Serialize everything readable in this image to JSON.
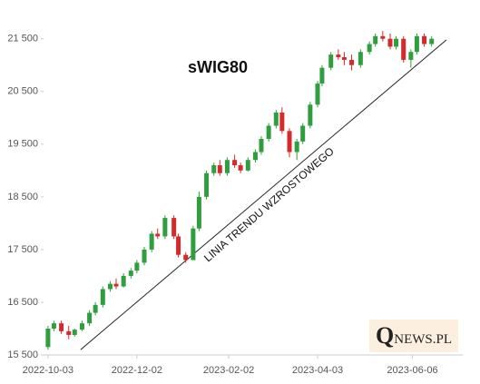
{
  "chart_data": {
    "type": "candlestick",
    "title": "sWIG80",
    "annotation": "LINIA TRENDU WZROSTOWEGO",
    "logo": "QNEWS.PL",
    "up_color": "#2e9e3f",
    "down_color": "#d62a2a",
    "x": [
      "2022-10-03",
      "2022-10-07",
      "2022-10-12",
      "2022-10-17",
      "2022-10-21",
      "2022-10-26",
      "2022-10-31",
      "2022-11-04",
      "2022-11-09",
      "2022-11-14",
      "2022-11-18",
      "2022-11-23",
      "2022-11-28",
      "2022-12-02",
      "2022-12-07",
      "2022-12-12",
      "2022-12-16",
      "2022-12-21",
      "2022-12-27",
      "2022-12-30",
      "2023-01-04",
      "2023-01-09",
      "2023-01-13",
      "2023-01-18",
      "2023-01-23",
      "2023-01-27",
      "2023-02-01",
      "2023-02-06",
      "2023-02-10",
      "2023-02-15",
      "2023-02-20",
      "2023-02-24",
      "2023-03-01",
      "2023-03-06",
      "2023-03-10",
      "2023-03-15",
      "2023-03-20",
      "2023-03-24",
      "2023-03-29",
      "2023-04-03",
      "2023-04-06",
      "2023-04-12",
      "2023-04-17",
      "2023-04-21",
      "2023-04-26",
      "2023-05-02",
      "2023-05-08",
      "2023-05-12",
      "2023-05-17",
      "2023-05-22",
      "2023-05-26",
      "2023-05-31",
      "2023-06-05",
      "2023-06-09",
      "2023-06-14",
      "2023-06-19"
    ],
    "open": [
      15650,
      16000,
      16100,
      15950,
      15880,
      15980,
      16100,
      16300,
      16450,
      16750,
      16850,
      16800,
      17000,
      17100,
      17250,
      17500,
      17800,
      17750,
      18100,
      17750,
      17400,
      17300,
      17900,
      18500,
      18950,
      19100,
      18950,
      19200,
      19100,
      19000,
      19200,
      19350,
      19600,
      19850,
      20100,
      19750,
      19350,
      19550,
      19850,
      20250,
      20650,
      20950,
      21200,
      21150,
      21100,
      21000,
      21250,
      21400,
      21550,
      21500,
      21350,
      21500,
      21100,
      21250,
      21550,
      21400
    ],
    "high": [
      16050,
      16150,
      16150,
      16050,
      16000,
      16150,
      16350,
      16500,
      16800,
      16900,
      16950,
      17050,
      17150,
      17300,
      17550,
      17850,
      17900,
      18150,
      18150,
      17800,
      17450,
      17950,
      18600,
      19000,
      19150,
      19200,
      19250,
      19300,
      19150,
      19250,
      19400,
      19650,
      19900,
      20150,
      20200,
      19800,
      19600,
      19900,
      20300,
      20700,
      21000,
      21250,
      21300,
      21250,
      21200,
      21300,
      21450,
      21600,
      21650,
      21600,
      21550,
      21550,
      21300,
      21600,
      21600,
      21550
    ],
    "low": [
      15600,
      15950,
      15900,
      15800,
      15850,
      15950,
      16050,
      16250,
      16400,
      16700,
      16750,
      16780,
      16950,
      17050,
      17200,
      17450,
      17700,
      17700,
      17700,
      17350,
      17250,
      17300,
      17850,
      18450,
      18900,
      18900,
      18900,
      19050,
      18950,
      18980,
      19150,
      19300,
      19550,
      19800,
      19700,
      19250,
      19200,
      19500,
      19800,
      20200,
      20600,
      20900,
      21100,
      21000,
      20900,
      20950,
      21200,
      21350,
      21450,
      21300,
      21300,
      21050,
      20950,
      21200,
      21350,
      21350
    ],
    "close": [
      16000,
      16100,
      15950,
      15880,
      15980,
      16100,
      16300,
      16450,
      16750,
      16850,
      16800,
      17000,
      17100,
      17250,
      17500,
      17800,
      17750,
      18100,
      17750,
      17400,
      17300,
      17900,
      18500,
      18950,
      19100,
      18950,
      19200,
      19100,
      19000,
      19200,
      19350,
      19600,
      19850,
      20100,
      19750,
      19350,
      19550,
      19850,
      20250,
      20650,
      20950,
      21200,
      21150,
      21100,
      21000,
      21250,
      21400,
      21550,
      21500,
      21350,
      21500,
      21100,
      21250,
      21550,
      21400,
      21500
    ],
    "trend_line": {
      "x": [
        "2022-10-25",
        "2023-06-29"
      ],
      "y": [
        15600,
        21480
      ]
    },
    "xlim": [
      "2022-09-30",
      "2023-07-10"
    ],
    "xticks": [
      "2022-10-03",
      "2022-12-02",
      "2023-02-02",
      "2023-04-03",
      "2023-06-06"
    ],
    "ylim": [
      15500,
      21650
    ],
    "yticks": [
      {
        "value": 15500,
        "label": "15 500"
      },
      {
        "value": 16500,
        "label": "16 500"
      },
      {
        "value": 17500,
        "label": "17 500"
      },
      {
        "value": 18500,
        "label": "18 500"
      },
      {
        "value": 19500,
        "label": "19 500"
      },
      {
        "value": 20500,
        "label": "20 500"
      },
      {
        "value": 21500,
        "label": "21 500"
      }
    ]
  }
}
